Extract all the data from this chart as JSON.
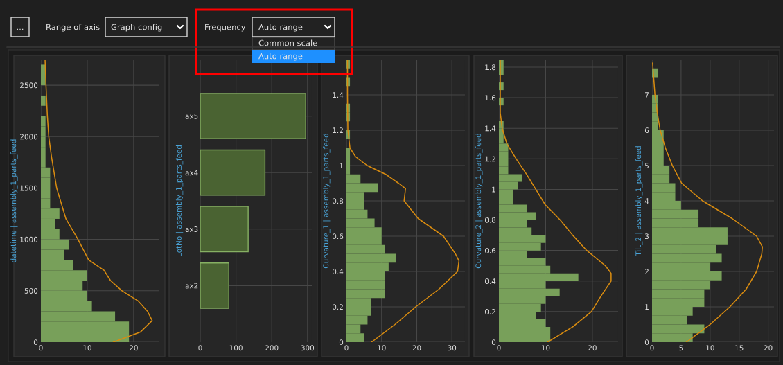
{
  "chart_data": [
    {
      "type": "other",
      "annotations": [
        "...",
        "Range of axis",
        "Graph config",
        "Frequency",
        "Auto range",
        "Common scale",
        "Auto range"
      ]
    },
    {
      "type": "histogram",
      "orientation": "horizontal",
      "ylabel": "datetime | assembly_1_parts_feed",
      "color": "#78a05a",
      "bins": [
        0,
        100,
        200,
        300,
        400,
        500,
        600,
        700,
        800,
        900,
        1000,
        1100,
        1200,
        1300,
        1400,
        1500,
        1600,
        1700,
        1800,
        1900,
        2000,
        2100,
        2200,
        2300,
        2400,
        2500,
        2600,
        2700
      ],
      "values": [
        19,
        19,
        16,
        11,
        10,
        9,
        10,
        7,
        5,
        6,
        4,
        3,
        4,
        2,
        2,
        2,
        2,
        1,
        1,
        1,
        1,
        1,
        0,
        1,
        0,
        1,
        1
      ],
      "series": [
        {
          "type": "line",
          "color": "#d98c10",
          "x": [
            0,
            100,
            210,
            300,
            400,
            500,
            600,
            700,
            800,
            1000,
            1200,
            1500,
            1800,
            2000,
            2200,
            2500,
            2750
          ],
          "values": [
            15.6,
            21.5,
            24,
            23,
            21,
            17.5,
            15,
            13.6,
            10.3,
            8,
            5.4,
            3.4,
            2.3,
            1.7,
            1.4,
            1.1,
            0.9
          ]
        }
      ],
      "xlim": [
        0,
        25.4
      ],
      "xticks": [
        0,
        10,
        20
      ],
      "ylim": [
        0,
        2750
      ],
      "yticks": [
        0,
        500,
        1000,
        1500,
        2000,
        2500
      ],
      "grid": true
    },
    {
      "type": "bar",
      "orientation": "horizontal",
      "ylabel": "LotNo | assembly_1_parts_feed",
      "color": "#4a6332",
      "categories": [
        "ax5",
        "ax4",
        "ax3",
        "ax2"
      ],
      "values": [
        295,
        181,
        134,
        80
      ],
      "xlim": [
        0,
        312
      ],
      "xticks": [
        0,
        100,
        200,
        300
      ],
      "grid": true
    },
    {
      "type": "histogram",
      "orientation": "horizontal",
      "ylabel": "Curvature_1 | assembly_1_parts_feed",
      "color": "#78a05a",
      "bins": [
        0,
        0.05,
        0.1,
        0.15,
        0.2,
        0.25,
        0.3,
        0.35,
        0.4,
        0.45,
        0.5,
        0.55,
        0.6,
        0.65,
        0.7,
        0.75,
        0.8,
        0.85,
        0.9,
        0.95,
        1.0,
        1.05,
        1.1,
        1.15,
        1.2,
        1.25,
        1.3,
        1.35,
        1.4,
        1.45,
        1.5,
        1.55,
        1.6
      ],
      "values": [
        5,
        4,
        6,
        7,
        7,
        11,
        11,
        11,
        12,
        14,
        11,
        10,
        10,
        8,
        6,
        5,
        5,
        9,
        4,
        1,
        1,
        1,
        0,
        1,
        0,
        1,
        1,
        0,
        0,
        1,
        0,
        1
      ],
      "series": [
        {
          "type": "line",
          "color": "#d98c10",
          "x": [
            0,
            0.1,
            0.2,
            0.3,
            0.4,
            0.46,
            0.5,
            0.6,
            0.7,
            0.8,
            0.87,
            0.9,
            0.95,
            1.0,
            1.05,
            1.1,
            1.2,
            1.4,
            1.6
          ],
          "values": [
            7.1,
            13.8,
            19.7,
            26.3,
            31.6,
            32,
            31,
            27.6,
            20.4,
            16.4,
            16.8,
            14.8,
            11.2,
            5.9,
            2.6,
            1,
            0.4,
            0.3,
            0.3
          ]
        }
      ],
      "xlim": [
        0,
        33.7
      ],
      "xticks": [
        0,
        10,
        20,
        30
      ],
      "ylim": [
        0,
        1.6
      ],
      "yticks": [
        0,
        0.2,
        0.4,
        0.6,
        0.8,
        1,
        1.2,
        1.4
      ],
      "grid": true
    },
    {
      "type": "histogram",
      "orientation": "horizontal",
      "ylabel": "Curvature_2 | assembly_1_parts_feed",
      "color": "#78a05a",
      "bins": [
        0,
        0.05,
        0.1,
        0.15,
        0.2,
        0.25,
        0.3,
        0.35,
        0.4,
        0.45,
        0.5,
        0.55,
        0.6,
        0.65,
        0.7,
        0.75,
        0.8,
        0.85,
        0.9,
        0.95,
        1.0,
        1.05,
        1.1,
        1.15,
        1.2,
        1.25,
        1.3,
        1.35,
        1.4,
        1.45,
        1.5,
        1.55,
        1.6,
        1.65,
        1.7,
        1.75,
        1.8,
        1.85
      ],
      "values": [
        11,
        11,
        10,
        8,
        9,
        10,
        13,
        10,
        17,
        11,
        10,
        6,
        9,
        10,
        7,
        6,
        8,
        6,
        3,
        3,
        4,
        5,
        2,
        2,
        2,
        2,
        1,
        1,
        1,
        0,
        0,
        1,
        0,
        1,
        0,
        1,
        1
      ],
      "series": [
        {
          "type": "line",
          "color": "#d98c10",
          "x": [
            0,
            0.1,
            0.2,
            0.3,
            0.4,
            0.45,
            0.5,
            0.6,
            0.7,
            0.8,
            0.9,
            1.0,
            1.1,
            1.2,
            1.3,
            1.4,
            1.5,
            1.85
          ],
          "values": [
            10.4,
            15.8,
            19.8,
            21.8,
            24,
            24,
            22.8,
            18.8,
            15.8,
            13.1,
            9.9,
            7.9,
            5.9,
            3.7,
            1.7,
            0.7,
            0.3,
            0.3
          ]
        }
      ],
      "xlim": [
        0,
        25.5
      ],
      "xticks": [
        0,
        10,
        20
      ],
      "ylim": [
        0,
        1.85
      ],
      "yticks": [
        0,
        0.2,
        0.4,
        0.6,
        0.8,
        1,
        1.2,
        1.4,
        1.6,
        1.8
      ],
      "grid": true
    },
    {
      "type": "histogram",
      "orientation": "horizontal",
      "ylabel": "Tilt_2 | assembly_1_parts_feed",
      "color": "#78a05a",
      "bins": [
        0,
        0.25,
        0.5,
        0.75,
        1,
        1.25,
        1.5,
        1.75,
        2,
        2.25,
        2.5,
        2.75,
        3,
        3.25,
        3.5,
        3.75,
        4,
        4.25,
        4.5,
        4.75,
        5,
        5.25,
        5.5,
        5.75,
        6,
        6.25,
        6.5,
        6.75,
        7,
        7.25,
        7.5,
        7.75,
        8
      ],
      "values": [
        7,
        9,
        6,
        7,
        9,
        9,
        10,
        12,
        10,
        12,
        11,
        13,
        13,
        8,
        8,
        5,
        4,
        4,
        3,
        3,
        2,
        2,
        2,
        2,
        1,
        1,
        1,
        1,
        0,
        0,
        1,
        0
      ],
      "series": [
        {
          "type": "line",
          "color": "#d98c10",
          "x": [
            0,
            0.5,
            1,
            1.5,
            2,
            2.5,
            2.7,
            3,
            3.5,
            4,
            4.5,
            5,
            5.5,
            6,
            6.5,
            7,
            7.9
          ],
          "values": [
            5.9,
            10,
            13.4,
            16.2,
            18,
            18.9,
            19,
            18,
            13.8,
            8.7,
            5.1,
            3.5,
            2.3,
            1.4,
            0.9,
            0.5,
            0.1
          ]
        }
      ],
      "xlim": [
        0,
        21
      ],
      "xticks": [
        0,
        5,
        10,
        15,
        20
      ],
      "ylim": [
        0,
        8
      ],
      "yticks": [
        0,
        1,
        2,
        3,
        4,
        5,
        6,
        7
      ],
      "grid": true
    }
  ]
}
